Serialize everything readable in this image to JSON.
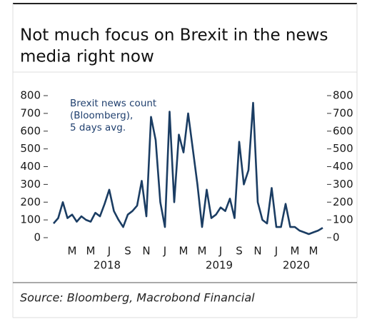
{
  "chart_data": {
    "type": "line",
    "title_lines": [
      "Not much focus on Brexit in the news",
      "media right now"
    ],
    "annotation_lines": [
      "Brexit news count",
      "(Bloomberg),",
      "5 days avg."
    ],
    "source": "Source: Bloomberg, Macrobond Financial",
    "categories": [
      null,
      null,
      null,
      null,
      "M",
      null,
      null,
      null,
      "M",
      null,
      null,
      null,
      "J",
      null,
      null,
      null,
      "S",
      null,
      null,
      null,
      "N",
      null,
      null,
      null,
      "J",
      null,
      null,
      null,
      "M",
      null,
      null,
      null,
      "M",
      null,
      null,
      null,
      "J",
      null,
      null,
      null,
      "S",
      null,
      null,
      null,
      "N",
      null,
      null,
      null,
      "J",
      null,
      null,
      null,
      "M",
      null,
      null,
      null,
      "M",
      null,
      null
    ],
    "year_labels": [
      "2018",
      "2019",
      "2020"
    ],
    "series": [
      {
        "name": "Brexit news count",
        "color": "#1b3d63",
        "values": [
          80,
          110,
          200,
          110,
          130,
          90,
          120,
          100,
          90,
          140,
          120,
          190,
          270,
          150,
          100,
          60,
          130,
          150,
          180,
          320,
          120,
          680,
          550,
          200,
          60,
          710,
          200,
          580,
          480,
          700,
          500,
          300,
          60,
          270,
          110,
          130,
          170,
          150,
          220,
          110,
          540,
          300,
          380,
          760,
          200,
          100,
          80,
          280,
          60,
          60,
          190,
          60,
          60,
          40,
          30,
          20,
          30,
          40,
          55
        ]
      }
    ],
    "ylim": [
      0,
      800
    ],
    "yticks": [
      0,
      100,
      200,
      300,
      400,
      500,
      600,
      700,
      800
    ]
  }
}
